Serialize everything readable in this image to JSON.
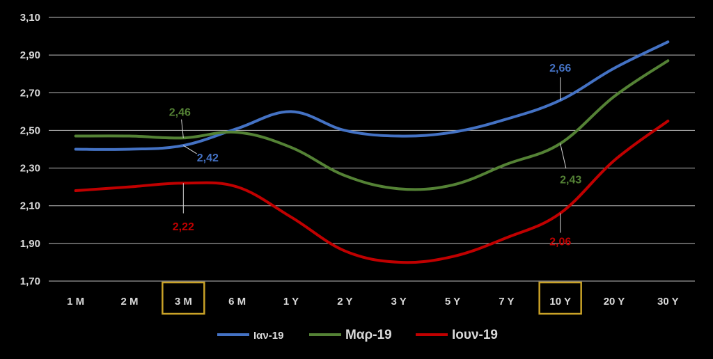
{
  "chart_data": {
    "type": "line",
    "categories": [
      "1 M",
      "2 M",
      "3 M",
      "6 M",
      "1 Y",
      "2 Y",
      "3 Y",
      "5 Y",
      "7 Y",
      "10 Y",
      "20 Y",
      "30 Y"
    ],
    "ylim": [
      1.7,
      3.1
    ],
    "yticks": [
      "1,70",
      "1,90",
      "2,10",
      "2,30",
      "2,50",
      "2,70",
      "2,90",
      "3,10"
    ],
    "grid": true,
    "legend_position": "bottom",
    "highlighted_categories": [
      "3 M",
      "10 Y"
    ],
    "highlight_color": "#c9a227",
    "series": [
      {
        "name": "Ιαν-19",
        "color": "#4472c4",
        "values": [
          2.4,
          2.4,
          2.42,
          2.51,
          2.6,
          2.5,
          2.47,
          2.49,
          2.56,
          2.66,
          2.83,
          2.97
        ]
      },
      {
        "name": "Μαρ-19",
        "color": "#548235",
        "values": [
          2.47,
          2.47,
          2.46,
          2.49,
          2.41,
          2.26,
          2.19,
          2.21,
          2.32,
          2.43,
          2.68,
          2.87
        ]
      },
      {
        "name": "Ιουν-19",
        "color": "#c00000",
        "values": [
          2.18,
          2.2,
          2.22,
          2.2,
          2.04,
          1.86,
          1.8,
          1.83,
          1.93,
          2.06,
          2.34,
          2.55
        ]
      }
    ],
    "annotations": [
      {
        "series": 0,
        "index": 2,
        "text": "2,42"
      },
      {
        "series": 0,
        "index": 9,
        "text": "2,66"
      },
      {
        "series": 1,
        "index": 2,
        "text": "2,46"
      },
      {
        "series": 1,
        "index": 9,
        "text": "2,43"
      },
      {
        "series": 2,
        "index": 2,
        "text": "2,22"
      },
      {
        "series": 2,
        "index": 9,
        "text": "2,06"
      }
    ]
  }
}
